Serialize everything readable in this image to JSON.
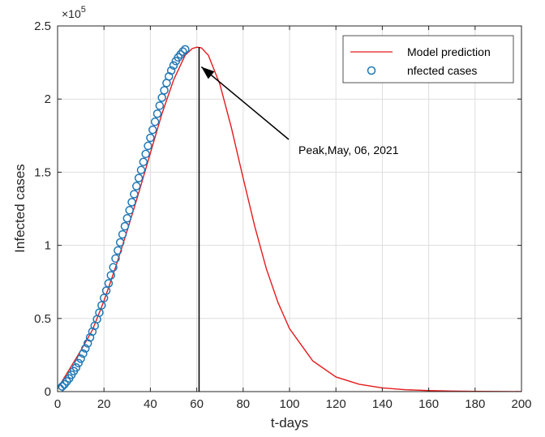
{
  "chart_data": {
    "type": "line",
    "xlabel": "t-days",
    "ylabel": "Infected cases",
    "xlim": [
      0,
      200
    ],
    "ylim": [
      0,
      250000
    ],
    "xticks": [
      0,
      20,
      40,
      60,
      80,
      100,
      120,
      140,
      160,
      180,
      200
    ],
    "yticks": [
      0,
      50000,
      100000,
      150000,
      200000,
      250000
    ],
    "ytick_labels": [
      "0",
      "0.5",
      "1",
      "1.5",
      "2",
      "2.5"
    ],
    "xtick_labels": [
      "0",
      "20",
      "40",
      "60",
      "80",
      "100",
      "120",
      "140",
      "160",
      "180",
      "200"
    ],
    "y_exponent_base": "×10",
    "y_exponent_power": "5",
    "grid": true,
    "legend_position": "top-right",
    "series": [
      {
        "name": "Model prediction",
        "style": "line",
        "color": "#e41a1c",
        "x": [
          0,
          5,
          10,
          15,
          20,
          25,
          30,
          35,
          40,
          45,
          50,
          55,
          58,
          60,
          62,
          65,
          70,
          75,
          80,
          85,
          90,
          95,
          100,
          110,
          120,
          130,
          140,
          150,
          160,
          170,
          180,
          190,
          200
        ],
        "y": [
          2000,
          15000,
          28000,
          42000,
          62000,
          85000,
          110000,
          136000,
          163000,
          190000,
          213000,
          230000,
          234500,
          235500,
          235000,
          230000,
          210000,
          180000,
          146000,
          113000,
          84000,
          61000,
          43000,
          21000,
          10000,
          5000,
          2500,
          1300,
          700,
          400,
          200,
          100,
          50
        ]
      },
      {
        "name": "nfected cases",
        "style": "markers",
        "marker": "circle",
        "color": "#1f77b4",
        "x": [
          1,
          2,
          3,
          4,
          5,
          6,
          7,
          8,
          9,
          10,
          11,
          12,
          13,
          14,
          15,
          16,
          17,
          18,
          19,
          20,
          21,
          22,
          23,
          24,
          25,
          26,
          27,
          28,
          29,
          30,
          31,
          32,
          33,
          34,
          35,
          36,
          37,
          38,
          39,
          40,
          41,
          42,
          43,
          44,
          45,
          46,
          47,
          48,
          49,
          50,
          51,
          52,
          53,
          54,
          55
        ],
        "y": [
          2000,
          3500,
          5000,
          7000,
          9000,
          11500,
          14000,
          16500,
          19500,
          22500,
          26000,
          29500,
          33000,
          37000,
          41000,
          45000,
          49500,
          54000,
          59000,
          64000,
          69000,
          74000,
          79500,
          85000,
          91000,
          96500,
          102000,
          107500,
          113000,
          118500,
          124000,
          129500,
          135000,
          140500,
          146000,
          151500,
          157000,
          162500,
          168000,
          173500,
          179000,
          184500,
          190000,
          195500,
          201000,
          206000,
          211000,
          215500,
          219500,
          223000,
          226000,
          228500,
          230500,
          232500,
          234000
        ]
      }
    ],
    "annotation": {
      "text": "Peak,May, 06, 2021",
      "arrow_tip_x": 62,
      "arrow_tip_y": 222000,
      "vertical_line_x": 61
    }
  }
}
